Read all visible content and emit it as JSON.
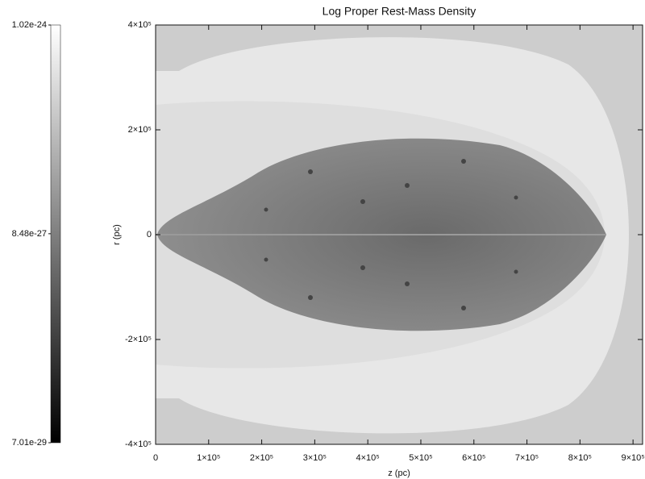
{
  "chart_data": {
    "type": "image",
    "title": "Log Proper Rest-Mass Density",
    "xlabel": "z (pc)",
    "ylabel": "r (pc)",
    "xlim": [
      0,
      918000
    ],
    "ylim": [
      -400000,
      400000
    ],
    "xticks": [
      0,
      {
        "value": 100000,
        "label": "1×10⁵"
      },
      {
        "value": 200000,
        "label": "2×10⁵"
      },
      {
        "value": 300000,
        "label": "3×10⁵"
      },
      {
        "value": 400000,
        "label": "4×10⁵"
      },
      {
        "value": 500000,
        "label": "5×10⁵"
      },
      {
        "value": 600000,
        "label": "6×10⁵"
      },
      {
        "value": 700000,
        "label": "7×10⁵"
      },
      {
        "value": 800000,
        "label": "8×10⁵"
      },
      {
        "value": 900000,
        "label": "9×10⁵"
      }
    ],
    "yticks": [
      {
        "value": -400000,
        "label": "-4×10⁵"
      },
      {
        "value": -200000,
        "label": "-2×10⁵"
      },
      0,
      {
        "value": 200000,
        "label": "2×10⁵"
      },
      {
        "value": 400000,
        "label": "4×10⁵"
      }
    ],
    "colorbar": {
      "lim": [
        7.01e-29,
        1.02e-24
      ],
      "log": true,
      "ticks": [
        7.01e-29,
        8.48e-27,
        1.02e-24
      ]
    }
  }
}
